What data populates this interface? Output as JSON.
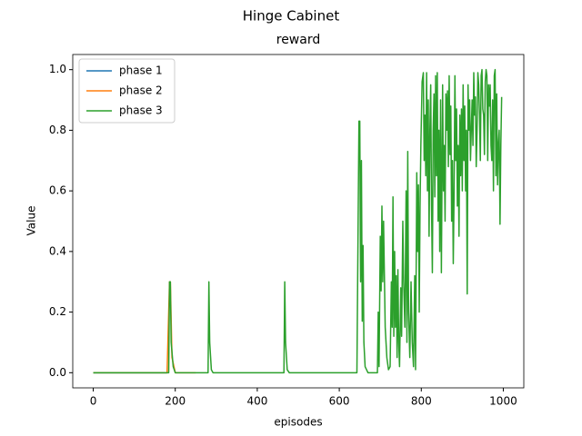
{
  "chart_data": {
    "type": "line",
    "suptitle": "Hinge Cabinet",
    "title": "reward",
    "xlabel": "episodes",
    "ylabel": "Value",
    "xlim": [
      -50,
      1050
    ],
    "ylim": [
      -0.05,
      1.05
    ],
    "xticks": [
      0,
      200,
      400,
      600,
      800,
      1000
    ],
    "yticks": [
      {
        "value": 0,
        "label": "0.0"
      },
      {
        "value": 0.2,
        "label": "0.2"
      },
      {
        "value": 0.4,
        "label": "0.4"
      },
      {
        "value": 0.6,
        "label": "0.6"
      },
      {
        "value": 0.8,
        "label": "0.8"
      },
      {
        "value": 1,
        "label": "1.0"
      }
    ],
    "legend": "upper left",
    "series": [
      {
        "name": "phase 1",
        "color": "#1f77b4",
        "x": [
          0,
          100,
          180
        ],
        "values": [
          0,
          0,
          0
        ]
      },
      {
        "name": "phase 2",
        "color": "#ff7f0e",
        "x": [
          0,
          180,
          186,
          188,
          192,
          200,
          250
        ],
        "values": [
          0,
          0,
          0.3,
          0.3,
          0.05,
          0,
          0
        ]
      },
      {
        "name": "phase 3",
        "color": "#2ca02c",
        "x": [
          0,
          184,
          186,
          188,
          190,
          195,
          200,
          280,
          282,
          284,
          288,
          292,
          465,
          467,
          469,
          473,
          478,
          643,
          646,
          648,
          650,
          652,
          654,
          656,
          658,
          660,
          663,
          670,
          693,
          695,
          697,
          700,
          702,
          704,
          706,
          708,
          712,
          716,
          720,
          724,
          727,
          729,
          731,
          733,
          735,
          737,
          739,
          741,
          743,
          745,
          747,
          750,
          752,
          755,
          757,
          760,
          763,
          765,
          767,
          769,
          772,
          775,
          778,
          781,
          784,
          786,
          789,
          791,
          793,
          795,
          797,
          799,
          802,
          805,
          807,
          809,
          811,
          813,
          815,
          817,
          819,
          821,
          823,
          825,
          827,
          829,
          831,
          833,
          835,
          837,
          839,
          841,
          843,
          845,
          847,
          849,
          852,
          854,
          856,
          858,
          860,
          862,
          864,
          866,
          868,
          870,
          872,
          874,
          876,
          878,
          880,
          882,
          884,
          886,
          888,
          890,
          892,
          894,
          896,
          898,
          900,
          902,
          904,
          906,
          908,
          910,
          912,
          914,
          916,
          918,
          920,
          922,
          924,
          926,
          928,
          930,
          932,
          934,
          936,
          938,
          940,
          942,
          944,
          946,
          948,
          950,
          952,
          954,
          956,
          958,
          960,
          962,
          964,
          966,
          968,
          970,
          972,
          974,
          976,
          978,
          980,
          982,
          984,
          986,
          988,
          990,
          992,
          994,
          996
        ],
        "values": [
          0,
          0,
          0.3,
          0.3,
          0.1,
          0.02,
          0,
          0,
          0.3,
          0.1,
          0.01,
          0,
          0,
          0.3,
          0.1,
          0.01,
          0,
          0,
          0.5,
          0.83,
          0.83,
          0.3,
          0.7,
          0.17,
          0.42,
          0.1,
          0.02,
          0,
          0,
          0.2,
          0.02,
          0.45,
          0.27,
          0.55,
          0.3,
          0.5,
          0.15,
          0.05,
          0.01,
          0.02,
          0.3,
          0.15,
          0.58,
          0.12,
          0.4,
          0.15,
          0.32,
          0.05,
          0.34,
          0.1,
          0.02,
          0.28,
          0.12,
          0.5,
          0.3,
          0.15,
          0.6,
          0.1,
          0.73,
          0.2,
          0.05,
          0.3,
          0.1,
          0.02,
          0.32,
          0.01,
          0.66,
          0.4,
          0.62,
          0.2,
          0.55,
          0.75,
          0.96,
          0.99,
          0.7,
          0.85,
          0.65,
          0.99,
          0.6,
          0.9,
          0.45,
          0.8,
          0.95,
          0.55,
          0.33,
          0.8,
          0.92,
          0.58,
          0.98,
          0.65,
          0.99,
          0.5,
          0.8,
          0.4,
          0.9,
          0.33,
          0.95,
          0.6,
          0.75,
          0.5,
          0.92,
          0.8,
          0.93,
          0.68,
          0.98,
          0.72,
          0.88,
          0.5,
          0.7,
          0.36,
          0.6,
          0.98,
          0.7,
          0.87,
          0.55,
          0.75,
          0.45,
          0.85,
          0.65,
          0.87,
          0.6,
          0.95,
          0.7,
          0.88,
          0.6,
          0.8,
          0.26,
          0.95,
          0.8,
          0.9,
          0.7,
          0.8,
          0.9,
          0.75,
          0.99,
          0.85,
          0.91,
          0.68,
          0.8,
          0.99,
          0.95,
          0.85,
          0.7,
          0.98,
          1.0,
          0.87,
          0.85,
          0.72,
          0.96,
          1.0,
          0.98,
          0.7,
          0.95,
          0.88,
          0.95,
          0.75,
          0.7,
          0.9,
          0.6,
          0.98,
          1.0,
          0.65,
          0.92,
          0.62,
          0.75,
          0.8,
          0.49,
          0.75,
          0.91
        ]
      }
    ]
  }
}
